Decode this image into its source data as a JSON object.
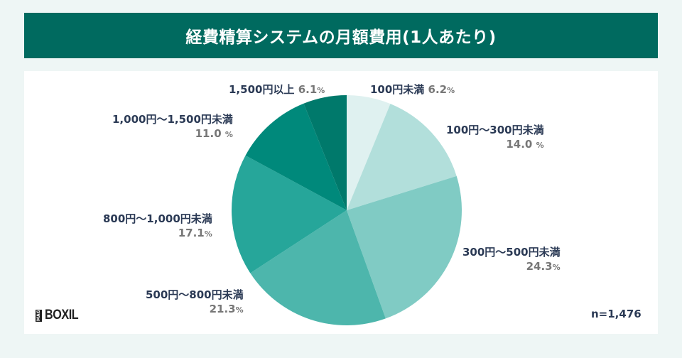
{
  "title": "経費精算システムの月額費用(1人あたり)",
  "sample_size": "n=1,476",
  "logo": {
    "mag": "MAG",
    "brand": "BOXIL"
  },
  "colors": {
    "title_bar": "#006a5f",
    "background": "#eef6f5"
  },
  "chart_data": {
    "type": "pie",
    "title": "経費精算システムの月額費用(1人あたり)",
    "start": "top",
    "direction": "clockwise",
    "slices": [
      {
        "label": "100円未満",
        "value": 6.2,
        "pct_text": "6.2",
        "color": "#dff1f0"
      },
      {
        "label": "100円〜300円未満",
        "value": 14.0,
        "pct_text": "14.0",
        "color": "#b2dfdb"
      },
      {
        "label": "300円〜500円未満",
        "value": 24.3,
        "pct_text": "24.3",
        "color": "#80cbc4"
      },
      {
        "label": "500円〜800円未満",
        "value": 21.3,
        "pct_text": "21.3",
        "color": "#4db6ac"
      },
      {
        "label": "800円〜1,000円未満",
        "value": 17.1,
        "pct_text": "17.1",
        "color": "#26a69a"
      },
      {
        "label": "1,000円〜1,500円未満",
        "value": 11.0,
        "pct_text": "11.0",
        "color": "#00897b"
      },
      {
        "label": "1,500円以上",
        "value": 6.1,
        "pct_text": "6.1",
        "color": "#00796b"
      }
    ],
    "unit": "%"
  }
}
